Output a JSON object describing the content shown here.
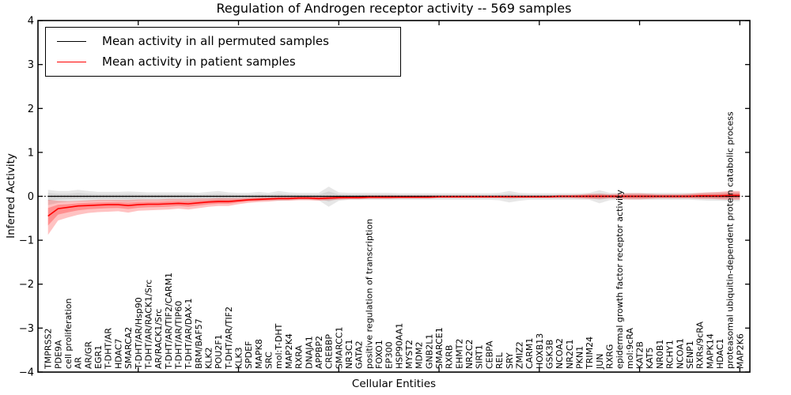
{
  "title": "Regulation of Androgen receptor activity -- 569 samples",
  "legend": {
    "items": [
      {
        "label": "Mean activity in all permuted samples",
        "color": "#000000"
      },
      {
        "label": "Mean activity in patient samples",
        "color": "#ff0000"
      }
    ],
    "position": "upper left"
  },
  "chart_data": {
    "type": "line",
    "title": "Regulation of Androgen receptor activity -- 569 samples",
    "xlabel": "Cellular Entities",
    "ylabel": "Inferred Activity",
    "ylim": [
      -4,
      4
    ],
    "yticks": [
      4,
      3,
      2,
      1,
      0,
      -1,
      -2,
      -3,
      -4
    ],
    "xtick_values": [
      10,
      20,
      30,
      40,
      50,
      60,
      70
    ],
    "grid": false,
    "zero_line": {
      "style": "dotted",
      "color": "#000000",
      "y": 0
    },
    "band_colors": {
      "permuted": "#aaaaaa",
      "patient": "#ff0000"
    },
    "categories": [
      "TMPRSS2",
      "PDE9A",
      "cell proliferation",
      "AR",
      "AR/GR",
      "EGR1",
      "T-DHT/AR",
      "HDAC7",
      "SMARCA2",
      "T-DHT/AR/Hsp90",
      "T-DHT/AR/RACK1/Src",
      "AR/RACK1/Src",
      "T-DHT/AR/TIF2/CARM1",
      "T-DHT/AR/TIP60",
      "T-DHT/AR/DAX-1",
      "BRM/BAF57",
      "KLK2",
      "POU2F1",
      "T-DHT/AR/TIF2",
      "KLK3",
      "SPDEF",
      "MAPK8",
      "SRC",
      "mol:T-DHT",
      "MAP2K4",
      "RXRA",
      "DNAJA1",
      "APPBP2",
      "CREBBP",
      "SMARCC1",
      "NR3C1",
      "GATA2",
      "positive regulation of transcription",
      "FOXO1",
      "EP300",
      "HSP90AA1",
      "MYST2",
      "MDM2",
      "GNB2L1",
      "SMARCE1",
      "RXRB",
      "EHMT2",
      "NR2C2",
      "SIRT1",
      "CEBPA",
      "REL",
      "SRY",
      "ZMIZ2",
      "CARM1",
      "HOXB13",
      "GSK3B",
      "NCOA2",
      "NR2C1",
      "PKN1",
      "TRIM24",
      "JUN",
      "RXRG",
      "epidermal growth factor receptor activity",
      "mol:9cRA",
      "KAT2B",
      "KAT5",
      "NR0B1",
      "RCHY1",
      "NCOA1",
      "SENP1",
      "RXRs/9cRA",
      "MAPK14",
      "HDAC1",
      "proteasomal ubiquitin-dependent protein catabolic process",
      "MAP2K6"
    ],
    "series": [
      {
        "name": "Mean activity in all permuted samples",
        "color": "#000000",
        "values": [
          0,
          0,
          0,
          0,
          0,
          0,
          0,
          0,
          0,
          0,
          0,
          0,
          0,
          0,
          0,
          0,
          0,
          0,
          0,
          0,
          0,
          0,
          0,
          0,
          0,
          0,
          0,
          0,
          0,
          0,
          0,
          0,
          0,
          0,
          0,
          0,
          0,
          0,
          0,
          0,
          0,
          0,
          0,
          0,
          0,
          0,
          0,
          0,
          0,
          0,
          0,
          0,
          0,
          0,
          0,
          0,
          0,
          0,
          0,
          0,
          0,
          0,
          0,
          0,
          0,
          0,
          0,
          0,
          0,
          0
        ],
        "band_lower": [
          -0.2,
          -0.15,
          -0.13,
          -0.12,
          -0.12,
          -0.11,
          -0.11,
          -0.12,
          -0.13,
          -0.11,
          -0.1,
          -0.1,
          -0.1,
          -0.1,
          -0.11,
          -0.1,
          -0.1,
          -0.12,
          -0.1,
          -0.09,
          -0.09,
          -0.1,
          -0.09,
          -0.1,
          -0.09,
          -0.08,
          -0.08,
          -0.09,
          -0.24,
          -0.1,
          -0.08,
          -0.08,
          -0.08,
          -0.08,
          -0.08,
          -0.08,
          -0.08,
          -0.08,
          -0.08,
          -0.08,
          -0.08,
          -0.08,
          -0.08,
          -0.08,
          -0.08,
          -0.09,
          -0.14,
          -0.1,
          -0.08,
          -0.08,
          -0.08,
          -0.08,
          -0.08,
          -0.08,
          -0.08,
          -0.16,
          -0.09,
          -0.08,
          -0.08,
          -0.08,
          -0.08,
          -0.08,
          -0.08,
          -0.08,
          -0.08,
          -0.09,
          -0.1,
          -0.1,
          -0.11,
          -0.11
        ],
        "band_upper": [
          0.15,
          0.12,
          0.12,
          0.15,
          0.12,
          0.1,
          0.1,
          0.1,
          0.11,
          0.1,
          0.09,
          0.09,
          0.09,
          0.09,
          0.09,
          0.08,
          0.1,
          0.12,
          0.09,
          0.08,
          0.08,
          0.1,
          0.08,
          0.12,
          0.09,
          0.08,
          0.08,
          0.08,
          0.22,
          0.09,
          0.08,
          0.08,
          0.08,
          0.08,
          0.08,
          0.07,
          0.07,
          0.07,
          0.07,
          0.07,
          0.07,
          0.07,
          0.07,
          0.07,
          0.07,
          0.08,
          0.12,
          0.08,
          0.07,
          0.07,
          0.07,
          0.07,
          0.07,
          0.07,
          0.08,
          0.14,
          0.08,
          0.08,
          0.08,
          0.08,
          0.08,
          0.08,
          0.08,
          0.08,
          0.08,
          0.08,
          0.09,
          0.09,
          0.1,
          0.1
        ]
      },
      {
        "name": "Mean activity in patient samples",
        "color": "#ff0000",
        "values": [
          -0.45,
          -0.28,
          -0.25,
          -0.22,
          -0.21,
          -0.2,
          -0.19,
          -0.19,
          -0.21,
          -0.19,
          -0.18,
          -0.18,
          -0.17,
          -0.16,
          -0.17,
          -0.15,
          -0.13,
          -0.12,
          -0.12,
          -0.1,
          -0.08,
          -0.07,
          -0.06,
          -0.05,
          -0.05,
          -0.04,
          -0.04,
          -0.05,
          -0.04,
          -0.03,
          -0.03,
          -0.03,
          -0.02,
          -0.02,
          -0.02,
          -0.02,
          -0.02,
          -0.02,
          -0.02,
          -0.01,
          -0.01,
          -0.01,
          -0.01,
          -0.01,
          -0.01,
          -0.01,
          -0.01,
          -0.01,
          -0.01,
          -0.01,
          -0.01,
          0,
          0,
          0,
          0,
          0,
          0,
          0,
          0,
          0,
          0,
          0,
          0,
          0,
          0,
          0.01,
          0.01,
          0.01,
          0.02,
          0.02
        ],
        "band_lower": [
          -0.88,
          -0.55,
          -0.48,
          -0.42,
          -0.38,
          -0.36,
          -0.35,
          -0.34,
          -0.37,
          -0.33,
          -0.32,
          -0.31,
          -0.3,
          -0.28,
          -0.3,
          -0.27,
          -0.24,
          -0.22,
          -0.22,
          -0.18,
          -0.15,
          -0.13,
          -0.12,
          -0.1,
          -0.1,
          -0.09,
          -0.09,
          -0.1,
          -0.09,
          -0.08,
          -0.07,
          -0.07,
          -0.06,
          -0.06,
          -0.06,
          -0.05,
          -0.05,
          -0.05,
          -0.05,
          -0.04,
          -0.04,
          -0.04,
          -0.04,
          -0.04,
          -0.04,
          -0.04,
          -0.04,
          -0.04,
          -0.04,
          -0.04,
          -0.04,
          -0.04,
          -0.04,
          -0.05,
          -0.06,
          -0.06,
          -0.05,
          -0.06,
          -0.07,
          -0.07,
          -0.06,
          -0.05,
          -0.05,
          -0.05,
          -0.05,
          -0.06,
          -0.06,
          -0.07,
          -0.08,
          -0.08
        ],
        "band_upper": [
          -0.08,
          -0.1,
          -0.11,
          -0.1,
          -0.09,
          -0.08,
          -0.08,
          -0.08,
          -0.08,
          -0.07,
          -0.07,
          -0.07,
          -0.06,
          -0.06,
          -0.06,
          -0.05,
          -0.05,
          -0.04,
          -0.04,
          -0.04,
          -0.03,
          -0.02,
          -0.02,
          -0.01,
          -0.01,
          0,
          0,
          0,
          0.01,
          0.01,
          0.01,
          0.01,
          0.02,
          0.02,
          0.02,
          0.02,
          0.02,
          0.02,
          0.02,
          0.02,
          0.02,
          0.02,
          0.02,
          0.02,
          0.02,
          0.02,
          0.02,
          0.02,
          0.02,
          0.02,
          0.02,
          0.03,
          0.03,
          0.04,
          0.06,
          0.06,
          0.05,
          0.06,
          0.07,
          0.07,
          0.06,
          0.05,
          0.05,
          0.05,
          0.06,
          0.08,
          0.09,
          0.1,
          0.12,
          0.12
        ]
      }
    ]
  }
}
